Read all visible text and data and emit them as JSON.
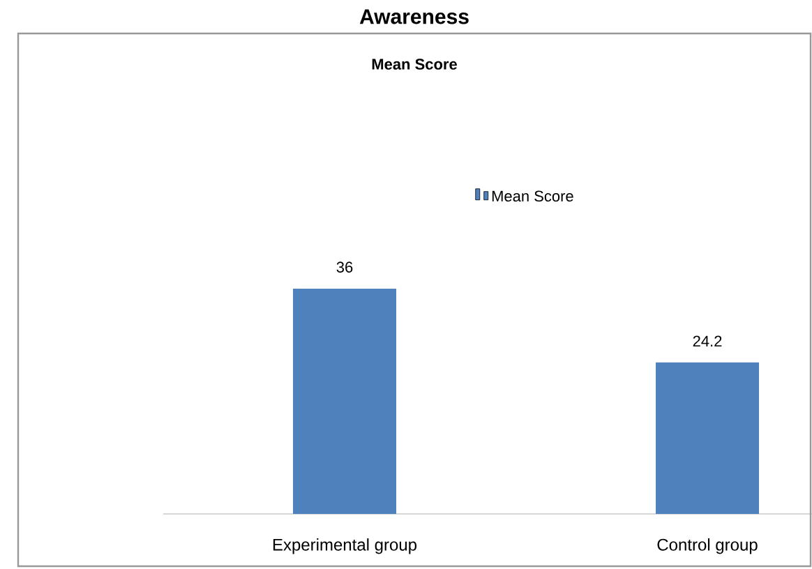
{
  "chart_data": {
    "type": "bar",
    "title": "Awareness",
    "subtitle": "Mean Score",
    "categories": [
      "Experimental group",
      "Control group"
    ],
    "series": [
      {
        "name": "Mean Score",
        "color": "#4f81bd",
        "values": [
          36,
          24.2
        ]
      }
    ],
    "data_labels": true,
    "legend": "top",
    "grid": false
  }
}
